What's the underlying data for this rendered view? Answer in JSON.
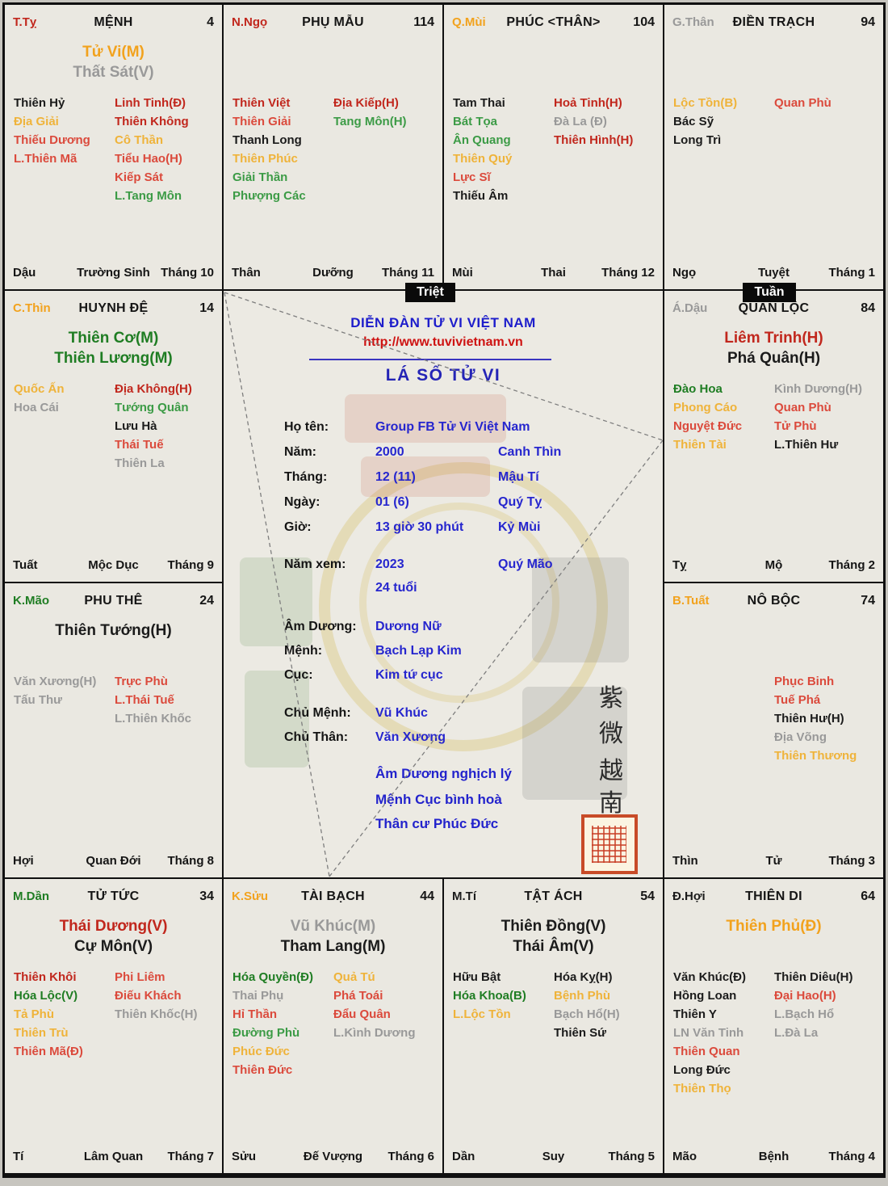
{
  "colors": {
    "red": "#DB4A3C",
    "dred": "#C1271D",
    "org": "#F2A21D",
    "yel": "#EFB33A",
    "grn": "#3C9B46",
    "dgrn": "#1F7D23",
    "gry": "#999999",
    "blk": "#1B1B1B",
    "blue": "#2626CE",
    "url_red": "#CE1312",
    "badge_bg": "#0A0A0A",
    "cell_bg": "#EAE8E1",
    "seal_red": "#C84B28"
  },
  "badges": {
    "triet": "Triệt",
    "tuan": "Tuần"
  },
  "center": {
    "forum_title": "DIỄN ĐÀN TỬ VI VIỆT NAM",
    "url": "http://www.tuvivietnam.vn",
    "chart_title": "LÁ SỐ TỬ VI",
    "fields": [
      {
        "label": "Họ tên:",
        "value": "Group FB Tử Vi Việt Nam",
        "value2": ""
      },
      {
        "label": "Năm:",
        "value": "2000",
        "value2": "Canh Thìn"
      },
      {
        "label": "Tháng:",
        "value": "12 (11)",
        "value2": "Mậu Tí"
      },
      {
        "label": "Ngày:",
        "value": "01 (6)",
        "value2": "Quý Tỵ"
      },
      {
        "label": "Giờ:",
        "value": "13 giờ 30 phút",
        "value2": "Kỷ Mùi"
      },
      {
        "label": "Năm xem:",
        "value": "2023",
        "value2": "Quý Mão"
      },
      {
        "label": "",
        "value": "24 tuổi",
        "value2": ""
      },
      {
        "label": "Âm Dương:",
        "value": "Dương Nữ",
        "value2": ""
      },
      {
        "label": "Mệnh:",
        "value": "Bạch Lạp Kim",
        "value2": ""
      },
      {
        "label": "Cục:",
        "value": "Kim tứ cục",
        "value2": ""
      },
      {
        "label": "Chủ Mệnh:",
        "value": "Vũ Khúc",
        "value2": ""
      },
      {
        "label": "Chủ Thân:",
        "value": "Văn Xương",
        "value2": ""
      }
    ],
    "summary": [
      "Âm Dương nghịch lý",
      "Mệnh Cục bình hoà",
      "Thân cư Phúc Đức"
    ],
    "vertical_chars": [
      "紫",
      "微",
      "越",
      "南"
    ]
  },
  "palaces": [
    {
      "id": "ty",
      "chi": {
        "text": "T.Tỵ",
        "color": "dred"
      },
      "title": "MỆNH",
      "num": "4",
      "mains": [
        {
          "text": "Tử Vi(M)",
          "color": "org"
        },
        {
          "text": "Thất Sát(V)",
          "color": "gry"
        }
      ],
      "left": [
        {
          "text": "Thiên Hỷ",
          "color": "blk"
        },
        {
          "text": "Địa Giải",
          "color": "yel"
        },
        {
          "text": "Thiếu Dương",
          "color": "red"
        },
        {
          "text": "L.Thiên Mã",
          "color": "red"
        }
      ],
      "right": [
        {
          "text": "Linh Tinh(Đ)",
          "color": "dred"
        },
        {
          "text": "Thiên Không",
          "color": "dred"
        },
        {
          "text": "Cô Thần",
          "color": "yel"
        },
        {
          "text": "Tiểu Hao(H)",
          "color": "red"
        },
        {
          "text": "Kiếp Sát",
          "color": "red"
        },
        {
          "text": "L.Tang Môn",
          "color": "grn"
        }
      ],
      "footer": {
        "chi": "Dậu",
        "stage": "Trường Sinh",
        "month": "Tháng 10"
      }
    },
    {
      "id": "ngo",
      "chi": {
        "text": "N.Ngọ",
        "color": "dred"
      },
      "title": "PHỤ MẪU",
      "num": "114",
      "mains": [],
      "left": [
        {
          "text": "Thiên Việt",
          "color": "dred"
        },
        {
          "text": "Thiên Giải",
          "color": "red"
        },
        {
          "text": "Thanh Long",
          "color": "blk"
        },
        {
          "text": "Thiên Phúc",
          "color": "yel"
        },
        {
          "text": "Giải Thần",
          "color": "grn"
        },
        {
          "text": "Phượng Các",
          "color": "grn"
        }
      ],
      "right": [
        {
          "text": "Địa Kiếp(H)",
          "color": "dred"
        },
        {
          "text": "Tang Môn(H)",
          "color": "grn"
        }
      ],
      "footer": {
        "chi": "Thân",
        "stage": "Dưỡng",
        "month": "Tháng 11"
      }
    },
    {
      "id": "mui",
      "chi": {
        "text": "Q.Mùi",
        "color": "org"
      },
      "title": "PHÚC <THÂN>",
      "num": "104",
      "mains": [],
      "left": [
        {
          "text": "Tam Thai",
          "color": "blk"
        },
        {
          "text": "Bát Tọa",
          "color": "grn"
        },
        {
          "text": "Ân Quang",
          "color": "grn"
        },
        {
          "text": "Thiên Quý",
          "color": "yel"
        },
        {
          "text": "Lực Sĩ",
          "color": "red"
        },
        {
          "text": "Thiếu Âm",
          "color": "blk"
        }
      ],
      "right": [
        {
          "text": "Hoả Tinh(H)",
          "color": "dred"
        },
        {
          "text": "Đà La (Đ)",
          "color": "gry"
        },
        {
          "text": "Thiên Hình(H)",
          "color": "dred"
        }
      ],
      "footer": {
        "chi": "Mùi",
        "stage": "Thai",
        "month": "Tháng 12"
      }
    },
    {
      "id": "than",
      "chi": {
        "text": "G.Thân",
        "color": "gry"
      },
      "title": "ĐIỀN TRẠCH",
      "num": "94",
      "mains": [],
      "left": [
        {
          "text": "Lộc Tồn(B)",
          "color": "yel"
        },
        {
          "text": "Bác Sỹ",
          "color": "blk"
        },
        {
          "text": "Long Trì",
          "color": "blk"
        }
      ],
      "right": [
        {
          "text": "Quan Phù",
          "color": "red"
        }
      ],
      "footer": {
        "chi": "Ngọ",
        "stage": "Tuyệt",
        "month": "Tháng 1"
      }
    },
    {
      "id": "thin",
      "chi": {
        "text": "C.Thìn",
        "color": "org"
      },
      "title": "HUYNH ĐỆ",
      "num": "14",
      "mains": [
        {
          "text": "Thiên Cơ(M)",
          "color": "dgrn"
        },
        {
          "text": "Thiên Lương(M)",
          "color": "dgrn"
        }
      ],
      "left": [
        {
          "text": "Quốc Ấn",
          "color": "yel"
        },
        {
          "text": "Hoa Cái",
          "color": "gry"
        }
      ],
      "right": [
        {
          "text": "Địa Không(H)",
          "color": "dred"
        },
        {
          "text": "Tướng Quân",
          "color": "grn"
        },
        {
          "text": "Lưu Hà",
          "color": "blk"
        },
        {
          "text": "Thái Tuế",
          "color": "red"
        },
        {
          "text": "Thiên La",
          "color": "gry"
        }
      ],
      "footer": {
        "chi": "Tuất",
        "stage": "Mộc Dục",
        "month": "Tháng 9"
      }
    },
    {
      "id": "dau",
      "chi": {
        "text": "Á.Dậu",
        "color": "gry"
      },
      "title": "QUAN LỘC",
      "num": "84",
      "mains": [
        {
          "text": "Liêm Trinh(H)",
          "color": "dred"
        },
        {
          "text": "Phá Quân(H)",
          "color": "blk"
        }
      ],
      "left": [
        {
          "text": "Đào Hoa",
          "color": "dgrn"
        },
        {
          "text": "Phong Cáo",
          "color": "yel"
        },
        {
          "text": "Nguyệt Đức",
          "color": "red"
        },
        {
          "text": "Thiên Tài",
          "color": "yel"
        }
      ],
      "right": [
        {
          "text": "Kình Dương(H)",
          "color": "gry"
        },
        {
          "text": "Quan Phù",
          "color": "red"
        },
        {
          "text": "Tử Phù",
          "color": "red"
        },
        {
          "text": "L.Thiên Hư",
          "color": "blk"
        }
      ],
      "footer": {
        "chi": "Tỵ",
        "stage": "Mộ",
        "month": "Tháng 2"
      }
    },
    {
      "id": "mao",
      "chi": {
        "text": "K.Mão",
        "color": "dgrn"
      },
      "title": "PHU THÊ",
      "num": "24",
      "mains": [
        {
          "text": "Thiên Tướng(H)",
          "color": "blk"
        }
      ],
      "left": [
        {
          "text": "Văn Xương(H)",
          "color": "gry"
        },
        {
          "text": "Tấu Thư",
          "color": "gry"
        }
      ],
      "right": [
        {
          "text": "Trực Phù",
          "color": "red"
        },
        {
          "text": "L.Thái Tuế",
          "color": "red"
        },
        {
          "text": "L.Thiên Khốc",
          "color": "gry"
        }
      ],
      "footer": {
        "chi": "Hợi",
        "stage": "Quan Đới",
        "month": "Tháng 8"
      }
    },
    {
      "id": "tuat",
      "chi": {
        "text": "B.Tuất",
        "color": "org"
      },
      "title": "NÔ BỘC",
      "num": "74",
      "mains": [],
      "left": [],
      "right": [
        {
          "text": "Phục Binh",
          "color": "red"
        },
        {
          "text": "Tuế Phá",
          "color": "red"
        },
        {
          "text": "Thiên Hư(H)",
          "color": "blk"
        },
        {
          "text": "Địa Võng",
          "color": "gry"
        },
        {
          "text": "Thiên Thương",
          "color": "yel"
        }
      ],
      "footer": {
        "chi": "Thìn",
        "stage": "Tử",
        "month": "Tháng 3"
      }
    },
    {
      "id": "dan",
      "chi": {
        "text": "M.Dần",
        "color": "dgrn"
      },
      "title": "TỬ TỨC",
      "num": "34",
      "mains": [
        {
          "text": "Thái Dương(V)",
          "color": "dred"
        },
        {
          "text": "Cự Môn(V)",
          "color": "blk"
        }
      ],
      "left": [
        {
          "text": "Thiên Khôi",
          "color": "dred"
        },
        {
          "text": "Hóa Lộc(V)",
          "color": "dgrn"
        },
        {
          "text": "Tả Phù",
          "color": "yel"
        },
        {
          "text": "Thiên Trù",
          "color": "yel"
        },
        {
          "text": "Thiên Mã(Đ)",
          "color": "red"
        }
      ],
      "right": [
        {
          "text": "Phi Liêm",
          "color": "red"
        },
        {
          "text": "Điếu Khách",
          "color": "red"
        },
        {
          "text": "Thiên Khốc(H)",
          "color": "gry"
        }
      ],
      "footer": {
        "chi": "Tí",
        "stage": "Lâm Quan",
        "month": "Tháng 7"
      }
    },
    {
      "id": "suu",
      "chi": {
        "text": "K.Sửu",
        "color": "org"
      },
      "title": "TÀI BẠCH",
      "num": "44",
      "mains": [
        {
          "text": "Vũ Khúc(M)",
          "color": "gry"
        },
        {
          "text": "Tham Lang(M)",
          "color": "blk"
        }
      ],
      "left": [
        {
          "text": "Hóa Quyền(Đ)",
          "color": "dgrn"
        },
        {
          "text": "Thai Phụ",
          "color": "gry"
        },
        {
          "text": "Hỉ Thần",
          "color": "red"
        },
        {
          "text": "Đường Phù",
          "color": "grn"
        },
        {
          "text": "Phúc Đức",
          "color": "yel"
        },
        {
          "text": "Thiên Đức",
          "color": "red"
        }
      ],
      "right": [
        {
          "text": "Quả Tú",
          "color": "yel"
        },
        {
          "text": "Phá Toái",
          "color": "red"
        },
        {
          "text": "Đẩu Quân",
          "color": "red"
        },
        {
          "text": "L.Kình Dương",
          "color": "gry"
        }
      ],
      "footer": {
        "chi": "Sửu",
        "stage": "Đế Vượng",
        "month": "Tháng 6"
      }
    },
    {
      "id": "ti",
      "chi": {
        "text": "M.Tí",
        "color": "blk"
      },
      "title": "TẬT ÁCH",
      "num": "54",
      "mains": [
        {
          "text": "Thiên Đồng(V)",
          "color": "blk"
        },
        {
          "text": "Thái Âm(V)",
          "color": "blk"
        }
      ],
      "left": [
        {
          "text": "Hữu Bật",
          "color": "blk"
        },
        {
          "text": "Hóa Khoa(B)",
          "color": "dgrn"
        },
        {
          "text": "L.Lộc Tồn",
          "color": "yel"
        }
      ],
      "right": [
        {
          "text": "Hóa Kỵ(H)",
          "color": "blk"
        },
        {
          "text": "Bệnh Phù",
          "color": "yel"
        },
        {
          "text": "Bạch Hổ(H)",
          "color": "gry"
        },
        {
          "text": "Thiên Sứ",
          "color": "blk"
        }
      ],
      "footer": {
        "chi": "Dần",
        "stage": "Suy",
        "month": "Tháng 5"
      }
    },
    {
      "id": "hoi",
      "chi": {
        "text": "Đ.Hợi",
        "color": "blk"
      },
      "title": "THIÊN DI",
      "num": "64",
      "mains": [
        {
          "text": "Thiên Phủ(Đ)",
          "color": "org"
        }
      ],
      "left": [
        {
          "text": "Văn Khúc(Đ)",
          "color": "blk"
        },
        {
          "text": "Hồng Loan",
          "color": "blk"
        },
        {
          "text": "Thiên Y",
          "color": "blk"
        },
        {
          "text": "LN Văn Tinh",
          "color": "gry"
        },
        {
          "text": "Thiên Quan",
          "color": "red"
        },
        {
          "text": "Long Đức",
          "color": "blk"
        },
        {
          "text": "Thiên Thọ",
          "color": "yel"
        }
      ],
      "right": [
        {
          "text": "Thiên Diêu(H)",
          "color": "blk"
        },
        {
          "text": "Đại Hao(H)",
          "color": "red"
        },
        {
          "text": "L.Bạch Hổ",
          "color": "gry"
        },
        {
          "text": "L.Đà La",
          "color": "gry"
        }
      ],
      "footer": {
        "chi": "Mão",
        "stage": "Bệnh",
        "month": "Tháng 4"
      }
    }
  ]
}
